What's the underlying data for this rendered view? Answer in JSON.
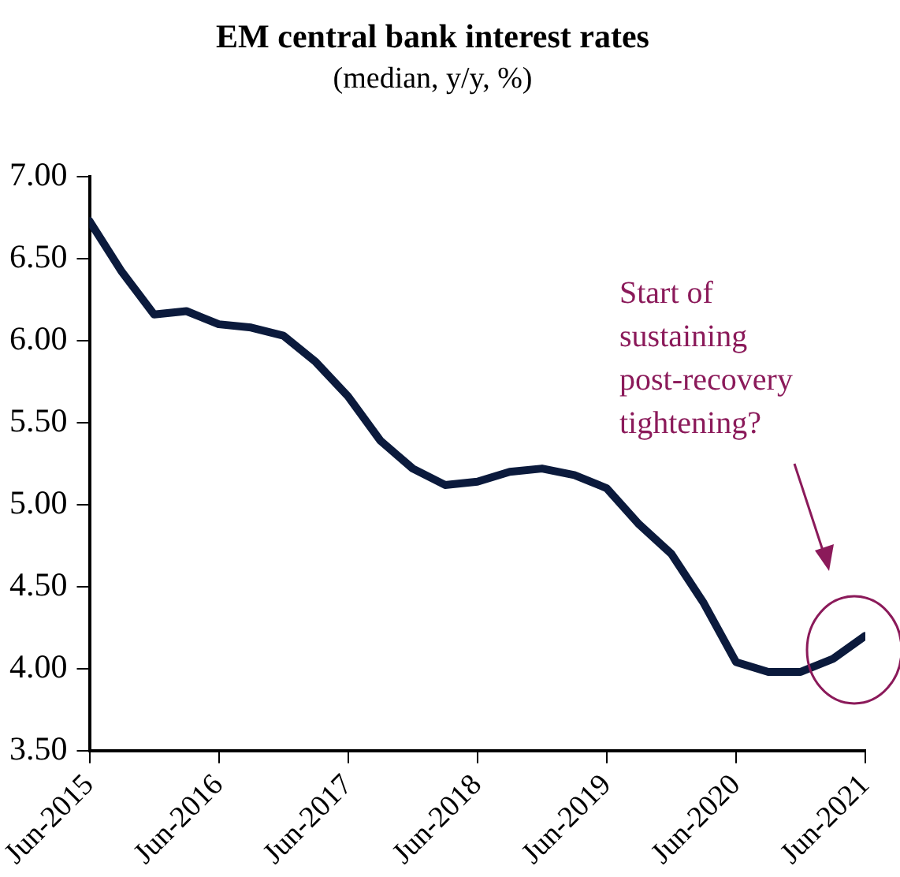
{
  "chart_data": {
    "type": "line",
    "title": "EM central bank interest rates",
    "subtitle": "(median, y/y, %)",
    "x": [
      "2015-06",
      "2015-09",
      "2015-12",
      "2016-03",
      "2016-06",
      "2016-09",
      "2016-12",
      "2017-03",
      "2017-06",
      "2017-09",
      "2017-12",
      "2018-03",
      "2018-06",
      "2018-09",
      "2018-12",
      "2019-03",
      "2019-06",
      "2019-09",
      "2019-12",
      "2020-03",
      "2020-06",
      "2020-09",
      "2020-12",
      "2021-03",
      "2021-06"
    ],
    "series": [
      {
        "color": "#0b1a3c",
        "values": [
          6.73,
          6.42,
          6.16,
          6.18,
          6.1,
          6.08,
          6.03,
          5.87,
          5.66,
          5.39,
          5.22,
          5.12,
          5.14,
          5.2,
          5.22,
          5.18,
          5.1,
          4.88,
          4.7,
          4.4,
          4.04,
          3.98,
          3.98,
          4.06,
          4.2
        ]
      }
    ],
    "xlim": [
      "2015-06",
      "2021-06"
    ],
    "xticks": [
      {
        "value": "2015-06",
        "label": "Jun-2015"
      },
      {
        "value": "2016-06",
        "label": "Jun-2016"
      },
      {
        "value": "2017-06",
        "label": "Jun-2017"
      },
      {
        "value": "2018-06",
        "label": "Jun-2018"
      },
      {
        "value": "2019-06",
        "label": "Jun-2019"
      },
      {
        "value": "2020-06",
        "label": "Jun-2020"
      },
      {
        "value": "2021-06",
        "label": "Jun-2021"
      }
    ],
    "ylim": [
      3.5,
      7
    ],
    "yticks": [
      {
        "value": 3.5,
        "label": "3.50"
      },
      {
        "value": 4,
        "label": "4.00"
      },
      {
        "value": 4.5,
        "label": "4.50"
      },
      {
        "value": 5,
        "label": "5.00"
      },
      {
        "value": 5.5,
        "label": "5.50"
      },
      {
        "value": 6,
        "label": "6.00"
      },
      {
        "value": 6.5,
        "label": "6.50"
      },
      {
        "value": 7,
        "label": "7.00"
      }
    ],
    "grid": false,
    "legend": false,
    "marker": "none",
    "line_style": "solid",
    "annotations": [
      "Start of\nsustaining\npost-recovery\ntightening?"
    ]
  }
}
